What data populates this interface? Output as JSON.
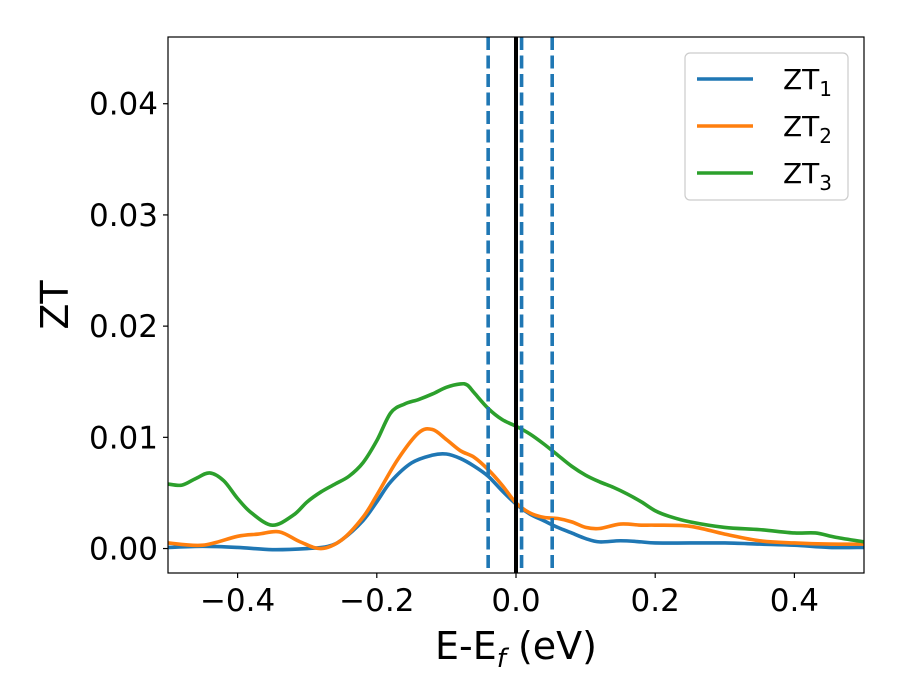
{
  "chart_data": {
    "type": "line",
    "xlabel": "E-E",
    "xlabel_sub": "f",
    "xlabel_unit": " (eV)",
    "ylabel": "ZT",
    "xlim": [
      -0.5,
      0.5
    ],
    "ylim": [
      -0.0022,
      0.046
    ],
    "xticks": [
      -0.4,
      -0.2,
      0.0,
      0.2,
      0.4
    ],
    "xtick_labels": [
      "−0.4",
      "−0.2",
      "0.0",
      "0.2",
      "0.4"
    ],
    "yticks": [
      0.0,
      0.01,
      0.02,
      0.03,
      0.04
    ],
    "ytick_labels": [
      "0.00",
      "0.01",
      "0.02",
      "0.03",
      "0.04"
    ],
    "grid": false,
    "legend_position": "top-right",
    "vlines": [
      {
        "x": -0.04,
        "style": "dashed",
        "color": "#1f77b4"
      },
      {
        "x": 0.0,
        "style": "solid",
        "color": "#000000"
      },
      {
        "x": 0.008,
        "style": "dashed",
        "color": "#1f77b4"
      },
      {
        "x": 0.052,
        "style": "dashed",
        "color": "#1f77b4"
      }
    ],
    "series": [
      {
        "name": "ZT",
        "sub": "1",
        "color": "#1f77b4",
        "x": [
          -0.5,
          -0.45,
          -0.4,
          -0.35,
          -0.3,
          -0.27,
          -0.25,
          -0.22,
          -0.2,
          -0.18,
          -0.15,
          -0.12,
          -0.1,
          -0.08,
          -0.06,
          -0.04,
          -0.02,
          0.0,
          0.02,
          0.04,
          0.06,
          0.08,
          0.1,
          0.12,
          0.15,
          0.18,
          0.2,
          0.25,
          0.3,
          0.35,
          0.4,
          0.45,
          0.5
        ],
        "values": [
          0.0001,
          0.0002,
          0.0001,
          -0.0001,
          0.0,
          0.0002,
          0.0008,
          0.0025,
          0.0042,
          0.006,
          0.0077,
          0.0084,
          0.0085,
          0.0081,
          0.0074,
          0.0065,
          0.0052,
          0.004,
          0.0031,
          0.0025,
          0.0019,
          0.0014,
          0.0009,
          0.0006,
          0.0007,
          0.0006,
          0.0005,
          0.0005,
          0.0005,
          0.0004,
          0.0003,
          0.0001,
          0.0001
        ]
      },
      {
        "name": "ZT",
        "sub": "2",
        "color": "#ff7f0e",
        "x": [
          -0.5,
          -0.45,
          -0.4,
          -0.37,
          -0.34,
          -0.31,
          -0.28,
          -0.25,
          -0.22,
          -0.2,
          -0.17,
          -0.14,
          -0.12,
          -0.1,
          -0.08,
          -0.06,
          -0.04,
          -0.02,
          0.0,
          0.02,
          0.04,
          0.06,
          0.08,
          0.1,
          0.12,
          0.15,
          0.18,
          0.2,
          0.25,
          0.3,
          0.35,
          0.4,
          0.45,
          0.5
        ],
        "values": [
          0.0005,
          0.0003,
          0.0011,
          0.0013,
          0.0015,
          0.0006,
          0.0,
          0.0008,
          0.0028,
          0.0048,
          0.008,
          0.0104,
          0.0107,
          0.0098,
          0.0088,
          0.0082,
          0.0071,
          0.0057,
          0.0041,
          0.0032,
          0.0028,
          0.0027,
          0.0024,
          0.0019,
          0.0018,
          0.0022,
          0.0021,
          0.0021,
          0.002,
          0.0013,
          0.0007,
          0.0005,
          0.0004,
          0.0004
        ]
      },
      {
        "name": "ZT",
        "sub": "3",
        "color": "#2ca02c",
        "x": [
          -0.5,
          -0.48,
          -0.46,
          -0.44,
          -0.42,
          -0.4,
          -0.38,
          -0.35,
          -0.32,
          -0.3,
          -0.28,
          -0.26,
          -0.24,
          -0.22,
          -0.2,
          -0.18,
          -0.16,
          -0.14,
          -0.12,
          -0.1,
          -0.08,
          -0.07,
          -0.06,
          -0.04,
          -0.02,
          0.0,
          0.02,
          0.04,
          0.06,
          0.08,
          0.1,
          0.12,
          0.14,
          0.16,
          0.18,
          0.2,
          0.22,
          0.25,
          0.3,
          0.35,
          0.4,
          0.43,
          0.46,
          0.5
        ],
        "values": [
          0.0058,
          0.0057,
          0.0063,
          0.0068,
          0.0061,
          0.0045,
          0.0032,
          0.0021,
          0.003,
          0.0042,
          0.0051,
          0.0058,
          0.0065,
          0.0077,
          0.0097,
          0.0122,
          0.013,
          0.0134,
          0.0139,
          0.0145,
          0.0148,
          0.0147,
          0.014,
          0.0126,
          0.0116,
          0.011,
          0.0103,
          0.0094,
          0.0084,
          0.0074,
          0.0066,
          0.006,
          0.0055,
          0.0049,
          0.0042,
          0.0034,
          0.0029,
          0.0024,
          0.0019,
          0.0017,
          0.0014,
          0.0014,
          0.001,
          0.0006
        ]
      }
    ]
  }
}
